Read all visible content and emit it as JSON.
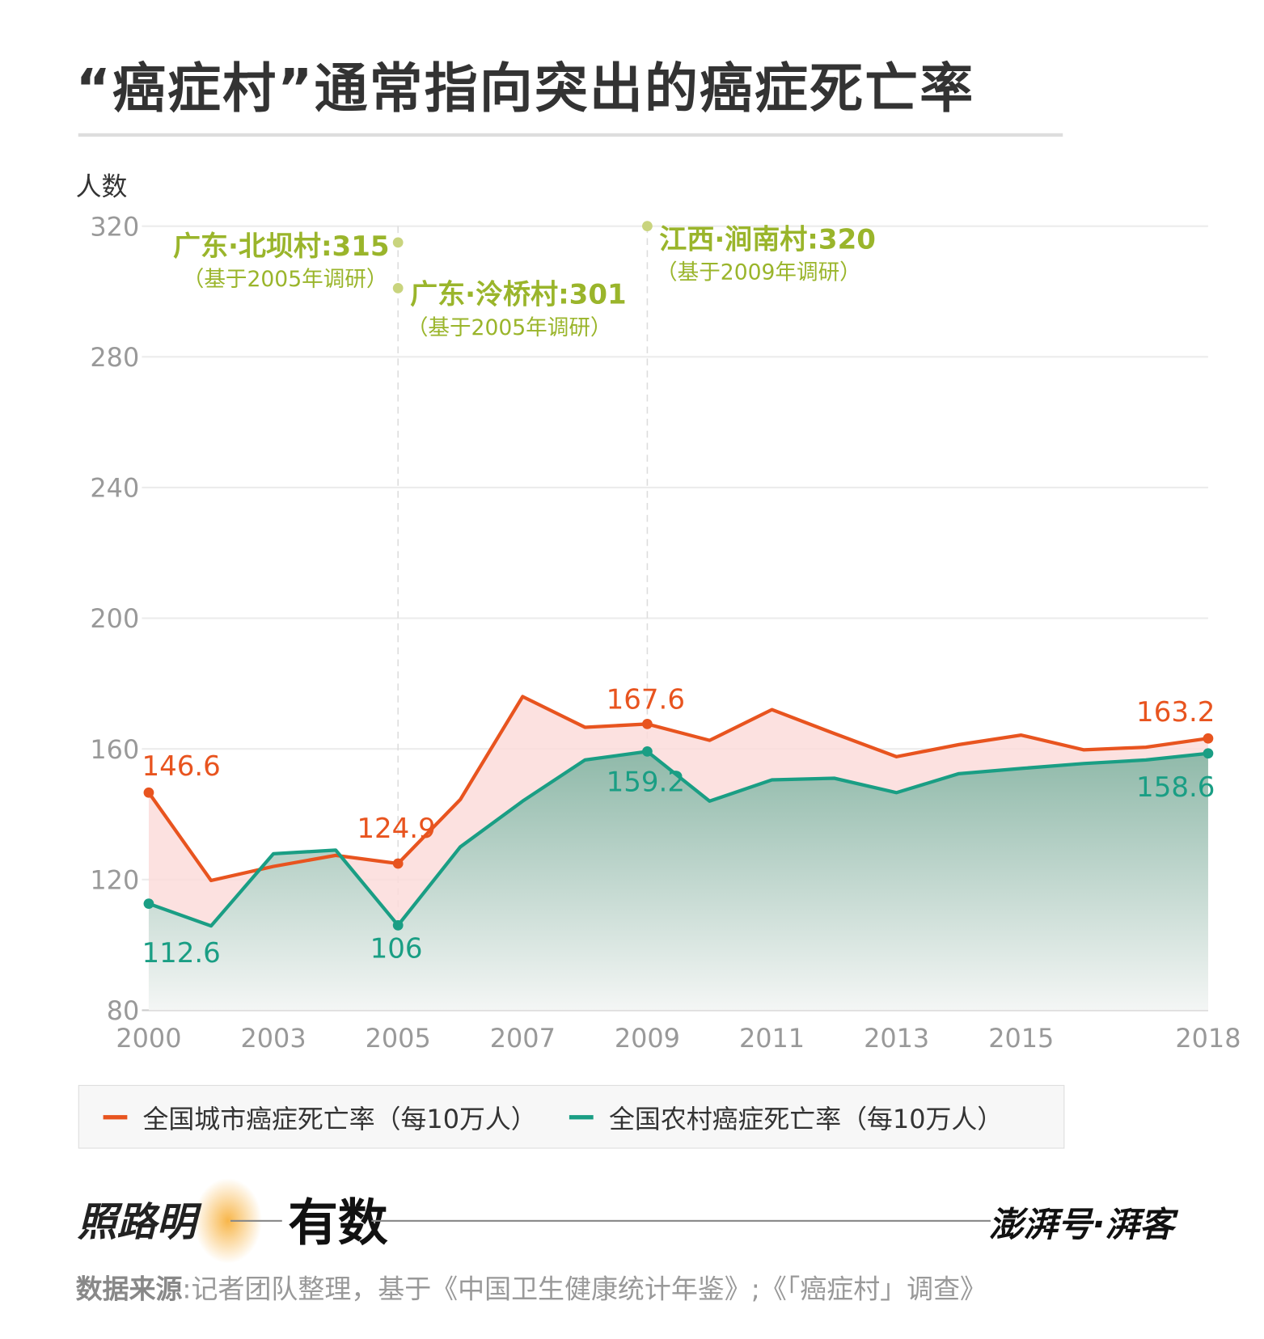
{
  "title": "“癌症村”通常指向突出的癌症死亡率",
  "footer": {
    "brand_left": "照路明",
    "brand_mid": "有数",
    "brand_right": "澎湃号·湃客",
    "source_label": "数据来源",
    "source_text": ":记者团队整理，基于《中国卫生健康统计年鉴》;《「癌症村」调查》"
  },
  "colors": {
    "urban": "#e8541f",
    "rural": "#1a9e84",
    "annotation": "#9ab52b",
    "annotation_dot": "#c9d47e"
  },
  "chart_data": {
    "type": "area",
    "ylabel": "人数",
    "ylim": [
      80,
      320
    ],
    "yticks": [
      "80",
      "120",
      "160",
      "200",
      "240",
      "280",
      "320"
    ],
    "grid": true,
    "legend_position": "bottom",
    "categories": [
      "2000",
      "",
      "2003",
      "",
      "2005",
      "",
      "2007",
      "",
      "2009",
      "",
      "2011",
      "",
      "2013",
      "",
      "2015",
      "",
      "",
      "2018"
    ],
    "series": [
      {
        "name": "全国城市癌症死亡率（每10万人）",
        "color": "#e8541f",
        "values": [
          146.6,
          119.7,
          124.0,
          127.4,
          124.9,
          144.5,
          176.0,
          166.6,
          167.6,
          162.6,
          172.0,
          164.7,
          157.6,
          161.3,
          164.2,
          159.7,
          160.5,
          163.2
        ],
        "labels": [
          {
            "index": 0,
            "text": "146.6"
          },
          {
            "index": 4,
            "text": "124.9"
          },
          {
            "index": 8,
            "text": "167.6"
          },
          {
            "index": 17,
            "text": "163.2"
          }
        ]
      },
      {
        "name": "全国农村癌症死亡率（每10万人）",
        "color": "#1a9e84",
        "values": [
          112.6,
          105.8,
          127.9,
          129.0,
          106.0,
          130.0,
          144.0,
          156.6,
          159.2,
          144.0,
          150.5,
          151.0,
          146.6,
          152.4,
          154.0,
          155.5,
          156.6,
          158.6
        ],
        "labels": [
          {
            "index": 0,
            "text": "112.6"
          },
          {
            "index": 4,
            "text": "106"
          },
          {
            "index": 8,
            "text": "159.2"
          },
          {
            "index": 17,
            "text": "158.6"
          }
        ]
      }
    ],
    "annotations": [
      {
        "index": 4,
        "value": 315,
        "title": "广东·北坝村:315",
        "note": "（基于2005年调研）",
        "side": "left"
      },
      {
        "index": 4,
        "value": 301,
        "title": "广东·泠桥村:301",
        "note": "（基于2005年调研）",
        "side": "right"
      },
      {
        "index": 8,
        "value": 320,
        "title": "江西·涧南村:320",
        "note": "（基于2009年调研）",
        "side": "right"
      }
    ]
  }
}
